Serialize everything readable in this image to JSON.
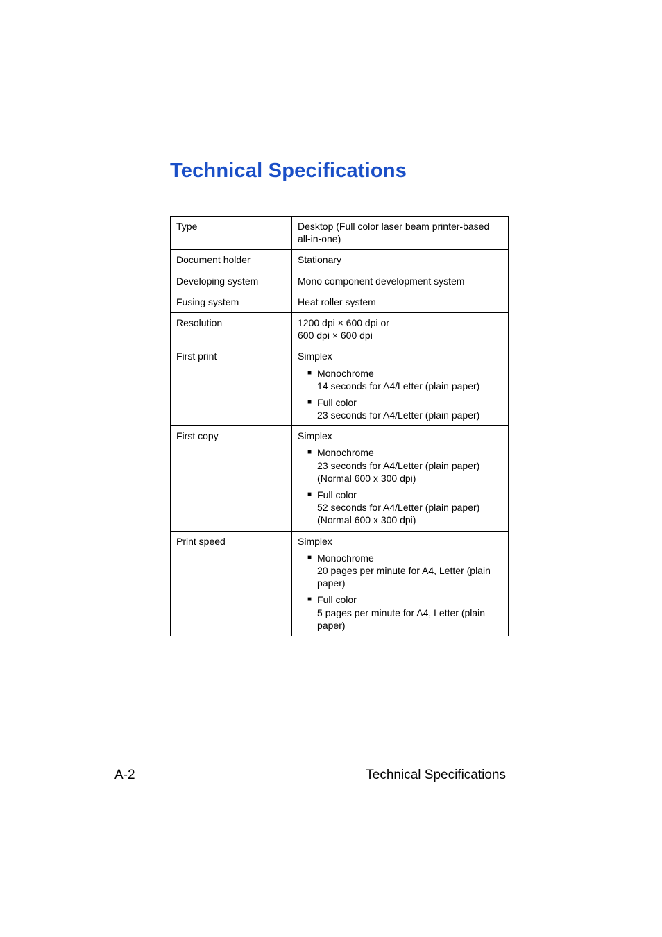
{
  "title": "Technical Specifications",
  "rows": {
    "type": {
      "key": "Type",
      "value": "Desktop (Full color laser beam printer-based all-in-one)"
    },
    "doc_holder": {
      "key": "Document holder",
      "value": "Stationary"
    },
    "dev_system": {
      "key": "Developing system",
      "value": "Mono component development system"
    },
    "fusing": {
      "key": "Fusing system",
      "value": "Heat roller system"
    },
    "resolution": {
      "key": "Resolution",
      "line1": "1200 dpi × 600 dpi or",
      "line2": "600 dpi × 600 dpi"
    },
    "first_print": {
      "key": "First print",
      "mode": "Simplex",
      "mono_label": "Monochrome",
      "mono_detail": "14 seconds for A4/Letter (plain paper)",
      "color_label": "Full color",
      "color_detail": "23 seconds for A4/Letter (plain paper)"
    },
    "first_copy": {
      "key": "First copy",
      "mode": "Simplex",
      "mono_label": "Monochrome",
      "mono_l1": "23 seconds for A4/Letter (plain paper)",
      "mono_l2": "(Normal 600 x 300 dpi)",
      "color_label": "Full color",
      "color_l1": "52 seconds for A4/Letter (plain paper)",
      "color_l2": "(Normal 600 x 300 dpi)"
    },
    "print_speed": {
      "key": "Print speed",
      "mode": "Simplex",
      "mono_label": "Monochrome",
      "mono_detail": "20 pages per minute for A4, Letter (plain paper)",
      "color_label": "Full color",
      "color_detail": "5 pages per minute for A4, Letter (plain paper)"
    }
  },
  "footer": {
    "left": "A-2",
    "right": "Technical Specifications"
  }
}
